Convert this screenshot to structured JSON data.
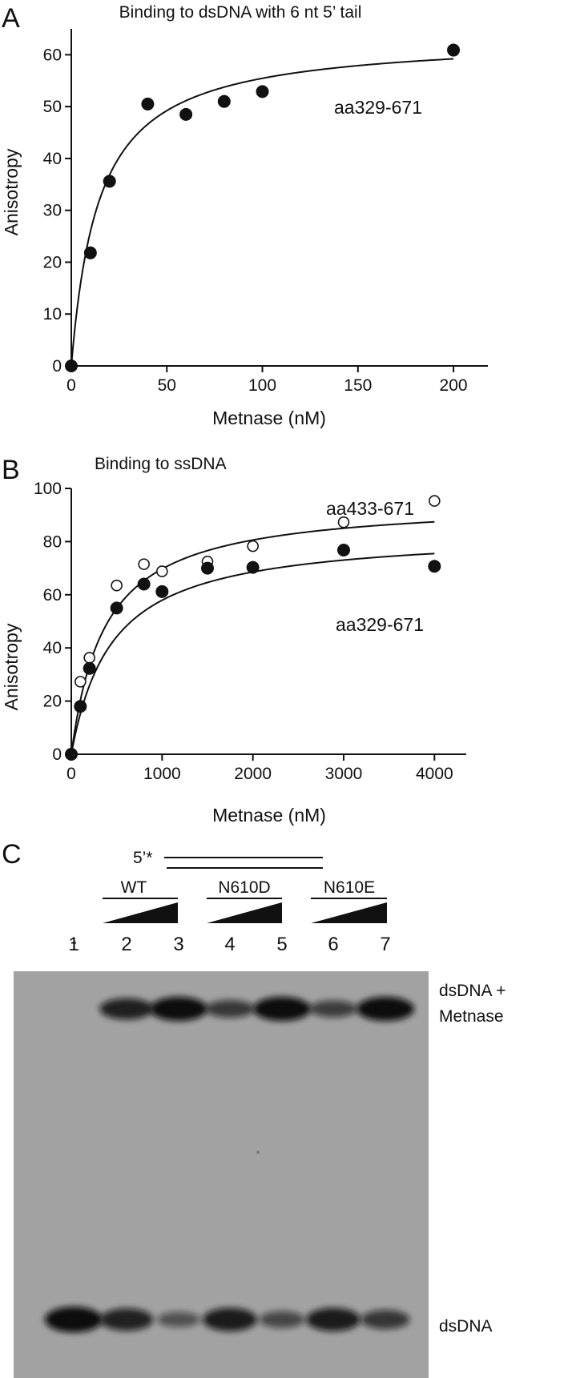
{
  "panelA": {
    "letter": "A",
    "chart_data": {
      "type": "scatter",
      "title": "Binding to dsDNA with 6 nt 5’ tail",
      "xlabel": "Metnase (nM)",
      "ylabel": "Anisotropy",
      "xlim": [
        0,
        218
      ],
      "ylim": [
        0,
        65
      ],
      "xticks": [
        0,
        50,
        100,
        150,
        200
      ],
      "yticks": [
        0,
        10,
        20,
        30,
        40,
        50,
        60
      ],
      "grid": false,
      "series": [
        {
          "name": "aa329-671",
          "marker": "filled",
          "x": [
            0,
            10,
            20,
            40,
            60,
            80,
            100,
            200
          ],
          "y": [
            0,
            21.8,
            35.6,
            50.5,
            48.5,
            51.0,
            52.9,
            60.9
          ],
          "fit": {
            "model": "hyperbolic",
            "bmax": 63.5,
            "kd": 14.5
          }
        }
      ]
    }
  },
  "panelB": {
    "letter": "B",
    "chart_data": {
      "type": "scatter",
      "title": "Binding to ssDNA",
      "xlabel": "Metnase (nM)",
      "ylabel": "Anisotropy",
      "xlim": [
        0,
        4350
      ],
      "ylim": [
        0,
        100
      ],
      "xticks": [
        0,
        1000,
        2000,
        3000,
        4000
      ],
      "yticks": [
        0,
        20,
        40,
        60,
        80,
        100
      ],
      "grid": false,
      "series": [
        {
          "name": "aa433-671",
          "marker": "open",
          "x": [
            0,
            100,
            200,
            500,
            800,
            1000,
            1500,
            2000,
            3000,
            4000
          ],
          "y": [
            0,
            27.3,
            36.3,
            63.5,
            71.5,
            68.8,
            72.5,
            78.3,
            87.3,
            95.3
          ],
          "fit": {
            "model": "hyperbolic",
            "bmax": 95.5,
            "kd": 370
          }
        },
        {
          "name": "aa329-671",
          "marker": "filled",
          "x": [
            0,
            100,
            200,
            500,
            800,
            1000,
            1500,
            2000,
            3000,
            4000
          ],
          "y": [
            0,
            18.0,
            32.3,
            55.0,
            64.0,
            61.2,
            70.0,
            70.3,
            76.8,
            70.7
          ],
          "fit": {
            "model": "hyperbolic",
            "bmax": 84.0,
            "kd": 450
          }
        }
      ]
    }
  },
  "panelC": {
    "letter": "C",
    "substrate_label": "5’*",
    "groups": [
      "WT",
      "N610D",
      "N610E"
    ],
    "lane_markers": [
      "-"
    ],
    "lanes": [
      "1",
      "2",
      "3",
      "4",
      "5",
      "6",
      "7"
    ],
    "band_labels": {
      "complex_line1": "dsDNA +",
      "complex_line2": "Metnase",
      "free": "dsDNA"
    },
    "band_intensity": {
      "complex": [
        0,
        0.8,
        1.0,
        0.55,
        1.0,
        0.5,
        1.0
      ],
      "free": [
        1.0,
        0.8,
        0.35,
        0.85,
        0.45,
        0.85,
        0.6
      ]
    }
  }
}
